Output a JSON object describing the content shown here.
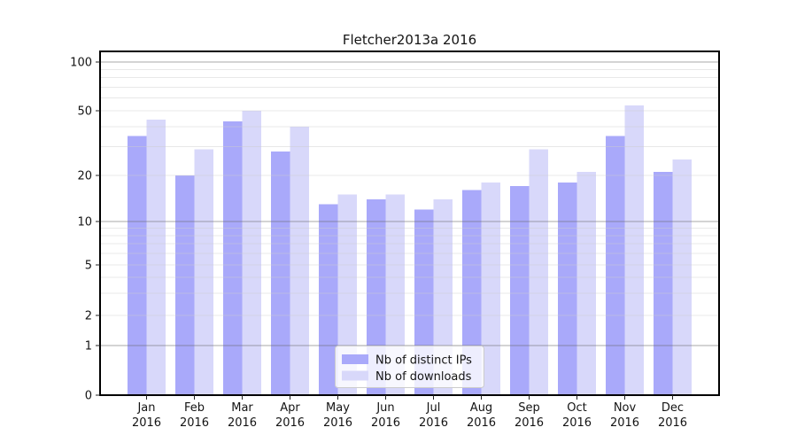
{
  "title": "Fletcher2013a 2016",
  "colors": {
    "bar_ips": "#a9a9fa",
    "bar_downloads": "#d8d8fa",
    "grid_major": "rgba(100,100,100,0.55)",
    "grid_minor": "rgba(205,205,205,0.45)",
    "spine": "#000000",
    "tick": "#222222",
    "text": "#141414",
    "legend_border": "#cccccc",
    "legend_bg": "rgba(255,255,255,0.8)"
  },
  "chart_data": {
    "type": "bar",
    "title": "Fletcher2013a 2016",
    "categories": [
      "Jan",
      "Feb",
      "Mar",
      "Apr",
      "May",
      "Jun",
      "Jul",
      "Aug",
      "Sep",
      "Oct",
      "Nov",
      "Dec"
    ],
    "category_year": "2016",
    "series": [
      {
        "name": "Nb of distinct IPs",
        "color": "#a9a9fa",
        "values": [
          35,
          20,
          43,
          28,
          13,
          14,
          12,
          16,
          17,
          18,
          35,
          21
        ]
      },
      {
        "name": "Nb of downloads",
        "color": "#d8d8fa",
        "values": [
          44,
          29,
          50,
          40,
          15,
          15,
          14,
          18,
          29,
          21,
          54,
          25
        ]
      }
    ],
    "yscale": "symlog",
    "yticks": [
      0,
      1,
      2,
      5,
      10,
      20,
      50,
      100
    ],
    "ytick_labels": [
      "0",
      "1",
      "2",
      "5",
      "10",
      "20",
      "50",
      "100"
    ],
    "minor_yticks": [
      3,
      4,
      6,
      7,
      8,
      9,
      30,
      40,
      60,
      70,
      80,
      90
    ],
    "light_yticks": [
      2,
      5,
      20,
      50
    ],
    "dark_yticks": [
      1,
      10,
      100
    ],
    "ylim": [
      0,
      115
    ],
    "xlabel": "",
    "ylabel": "",
    "grid": true,
    "legend_position": "lower center"
  }
}
